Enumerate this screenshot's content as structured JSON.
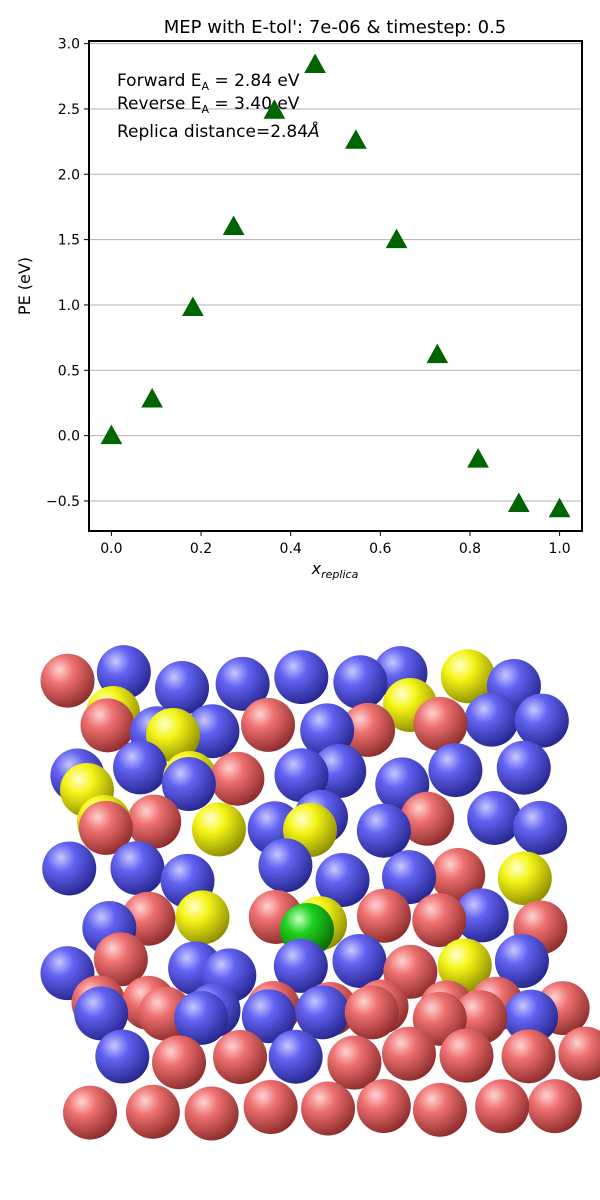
{
  "chart_data": {
    "type": "scatter",
    "title": "MEP with E-tol': 7e-06 & timestep: 0.5",
    "xlabel_base": "x",
    "xlabel_sub": "replica",
    "ylabel": "PE (eV)",
    "xlim": [
      -0.05,
      1.05
    ],
    "ylim": [
      -0.73,
      3.02
    ],
    "grid": "horizontal",
    "marker": "triangle",
    "color": "#006400",
    "x_ticks": [
      0.0,
      0.2,
      0.4,
      0.6,
      0.8,
      1.0
    ],
    "x_tick_labels": [
      "0.0",
      "0.2",
      "0.4",
      "0.6",
      "0.8",
      "1.0"
    ],
    "y_ticks": [
      -0.5,
      0.0,
      0.5,
      1.0,
      1.5,
      2.0,
      2.5,
      3.0
    ],
    "y_tick_labels": [
      "−0.5",
      "0.0",
      "0.5",
      "1.0",
      "1.5",
      "2.0",
      "2.5",
      "3.0"
    ],
    "points": [
      {
        "x": 0.0,
        "y": 0.0
      },
      {
        "x": 0.0909,
        "y": 0.28
      },
      {
        "x": 0.1818,
        "y": 0.98
      },
      {
        "x": 0.2727,
        "y": 1.6
      },
      {
        "x": 0.3636,
        "y": 2.49
      },
      {
        "x": 0.4545,
        "y": 2.84
      },
      {
        "x": 0.5454,
        "y": 2.26
      },
      {
        "x": 0.6363,
        "y": 1.5
      },
      {
        "x": 0.7272,
        "y": 0.62
      },
      {
        "x": 0.8181,
        "y": -0.18
      },
      {
        "x": 0.909,
        "y": -0.52
      },
      {
        "x": 1.0,
        "y": -0.56
      }
    ],
    "annotations": {
      "forward_prefix": "Forward E",
      "forward_sub": "A",
      "forward_suffix": " = 2.84 eV",
      "reverse_prefix": "Reverse E",
      "reverse_sub": "A",
      "reverse_suffix": " = 3.40 eV",
      "replica_prefix": "Replica distance=2.84",
      "replica_unit": "Å"
    }
  },
  "structure": {
    "colors": {
      "red": "#e85f5f",
      "blue": "#5a5af0",
      "yellow": "#f5f518",
      "green": "#1ed21e"
    }
  }
}
